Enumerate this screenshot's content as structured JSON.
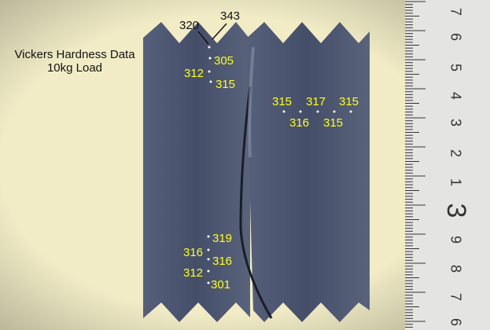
{
  "annotation": {
    "title": "Vickers Hardness Data",
    "subtitle": "10kg Load"
  },
  "readings": {
    "top": [
      320,
      343,
      305,
      312,
      315
    ],
    "right": [
      315,
      317,
      315,
      316,
      315
    ],
    "bottom": [
      319,
      316,
      316,
      312,
      301
    ]
  },
  "ruler": {
    "labels": [
      "7",
      "6",
      "5",
      "4",
      "3",
      "2",
      "1",
      "3",
      "9",
      "8",
      "7",
      "6"
    ]
  }
}
